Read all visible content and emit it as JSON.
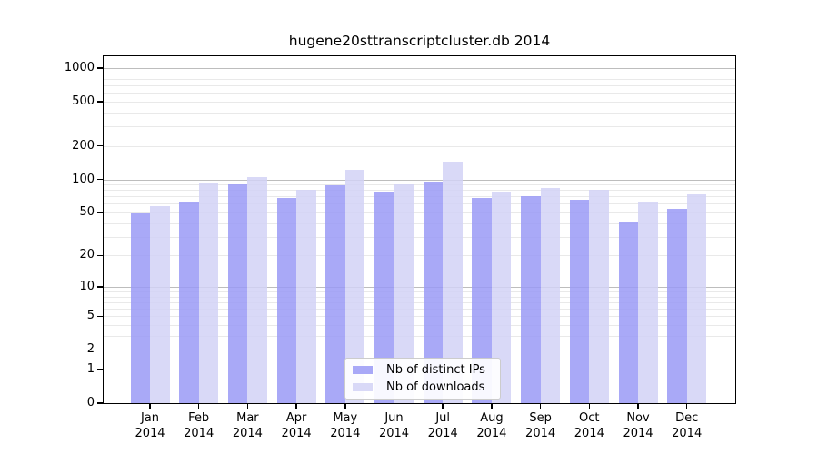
{
  "title": "hugene20sttranscriptcluster.db 2014",
  "colors": {
    "ip_bar": "#9a9af6",
    "dl_bar": "#d2d2f6",
    "ip_swatch": "#a9a9f7",
    "dl_swatch": "#d9d9f7",
    "grid_minor": "#e9e9e9",
    "grid_major": "#bdbdbd",
    "spine": "#000000"
  },
  "y_axis": {
    "tick_labels": [
      "1000",
      "500",
      "200",
      "100",
      "50",
      "20",
      "10",
      "5",
      "2",
      "1",
      "0"
    ],
    "tick_values": [
      1000,
      500,
      200,
      100,
      50,
      20,
      10,
      5,
      2,
      1,
      0
    ]
  },
  "x_axis": {
    "ticks": [
      {
        "month": "Jan",
        "year": "2014"
      },
      {
        "month": "Feb",
        "year": "2014"
      },
      {
        "month": "Mar",
        "year": "2014"
      },
      {
        "month": "Apr",
        "year": "2014"
      },
      {
        "month": "May",
        "year": "2014"
      },
      {
        "month": "Jun",
        "year": "2014"
      },
      {
        "month": "Jul",
        "year": "2014"
      },
      {
        "month": "Aug",
        "year": "2014"
      },
      {
        "month": "Sep",
        "year": "2014"
      },
      {
        "month": "Oct",
        "year": "2014"
      },
      {
        "month": "Nov",
        "year": "2014"
      },
      {
        "month": "Dec",
        "year": "2014"
      }
    ]
  },
  "legend": {
    "items": [
      {
        "label": "Nb of distinct IPs",
        "color": "#a9a9f7"
      },
      {
        "label": "Nb of downloads",
        "color": "#d9d9f7"
      }
    ]
  },
  "chart_data": {
    "type": "bar",
    "title": "hugene20sttranscriptcluster.db 2014",
    "y_scale": "log10(1+y)",
    "ylim": [
      0,
      1275
    ],
    "grid": true,
    "legend_position": "lower center",
    "categories": [
      "Jan 2014",
      "Feb 2014",
      "Mar 2014",
      "Apr 2014",
      "May 2014",
      "Jun 2014",
      "Jul 2014",
      "Aug 2014",
      "Sep 2014",
      "Oct 2014",
      "Nov 2014",
      "Dec 2014"
    ],
    "series": [
      {
        "name": "Nb of distinct IPs",
        "color": "#9a9af6",
        "values": [
          49,
          62,
          90,
          68,
          89,
          78,
          95,
          68,
          70,
          65,
          41,
          54
        ]
      },
      {
        "name": "Nb of downloads",
        "color": "#d2d2f6",
        "values": [
          57,
          92,
          105,
          80,
          122,
          91,
          145,
          78,
          83,
          80,
          62,
          73
        ]
      }
    ]
  }
}
